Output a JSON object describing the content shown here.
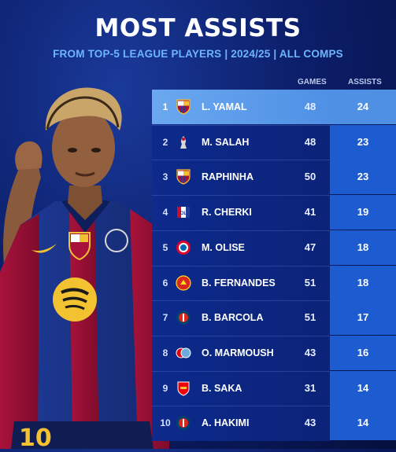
{
  "header": {
    "title": "MOST ASSISTS",
    "subtitle": "FROM TOP-5 LEAGUE PLAYERS | 2024/25 | ALL COMPS"
  },
  "columns": {
    "games": "GAMES",
    "assists": "ASSISTS"
  },
  "rows": [
    {
      "rank": "1",
      "name": "L. YAMAL",
      "games": "48",
      "assists": "24",
      "badge": "barcelona-crest-icon"
    },
    {
      "rank": "2",
      "name": "M. SALAH",
      "games": "48",
      "assists": "23",
      "badge": "liverpool-crest-icon"
    },
    {
      "rank": "3",
      "name": "RAPHINHA",
      "games": "50",
      "assists": "23",
      "badge": "barcelona-crest-icon"
    },
    {
      "rank": "4",
      "name": "R. CHERKI",
      "games": "41",
      "assists": "19",
      "badge": "lyon-crest-icon"
    },
    {
      "rank": "5",
      "name": "M. OLISE",
      "games": "47",
      "assists": "18",
      "badge": "bayern-crest-icon"
    },
    {
      "rank": "6",
      "name": "B. FERNANDES",
      "games": "51",
      "assists": "18",
      "badge": "man-united-crest-icon"
    },
    {
      "rank": "7",
      "name": "B. BARCOLA",
      "games": "51",
      "assists": "17",
      "badge": "psg-crest-icon"
    },
    {
      "rank": "8",
      "name": "O. MARMOUSH",
      "games": "43",
      "assists": "16",
      "badge": "frankfurt-mancity-crest-icon"
    },
    {
      "rank": "9",
      "name": "B. SAKA",
      "games": "31",
      "assists": "14",
      "badge": "arsenal-crest-icon"
    },
    {
      "rank": "10",
      "name": "A. HAKIMI",
      "games": "43",
      "assists": "14",
      "badge": "psg-crest-icon"
    }
  ],
  "player_photo": {
    "shirt_number": "10"
  },
  "colors": {
    "background": "#0c1f6b",
    "accent": "#6db5ff",
    "row_dark": "#0d2a8c",
    "assists_cell": "#1d5bd0",
    "highlight_row": "#5d9cea"
  }
}
